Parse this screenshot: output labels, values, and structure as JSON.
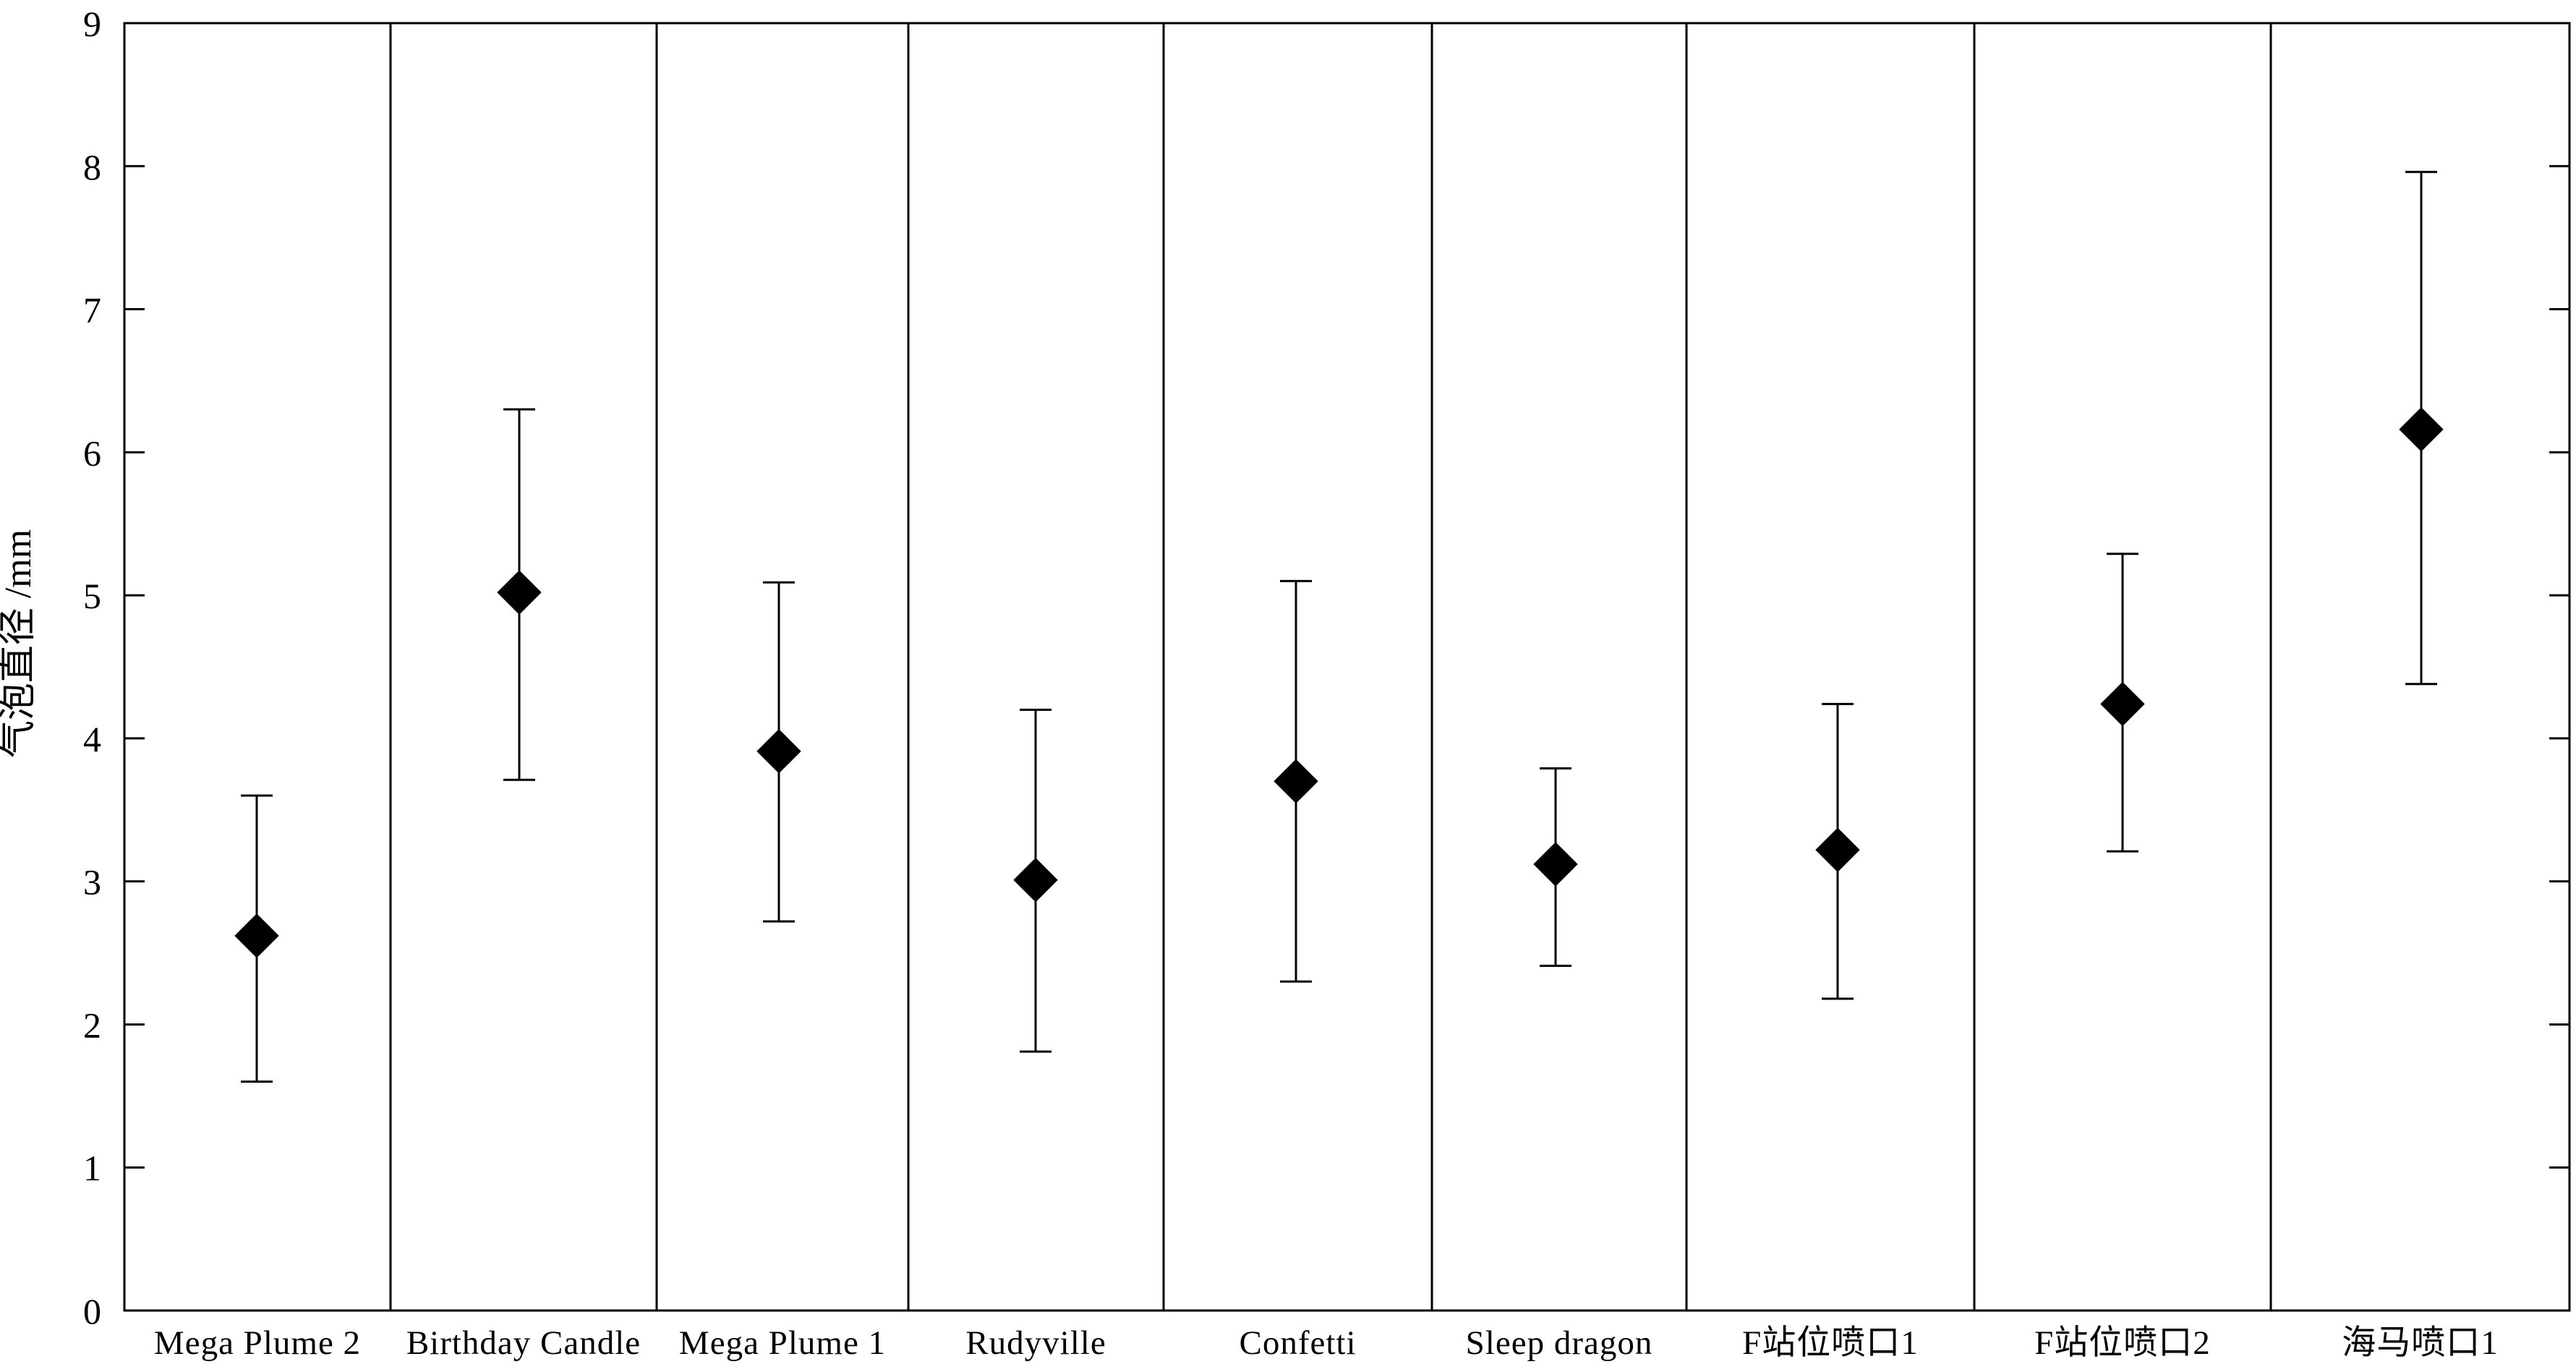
{
  "chart_data": {
    "type": "scatter",
    "title": "",
    "xlabel": "",
    "ylabel": "气泡直径 /mm",
    "ylim": [
      0,
      9
    ],
    "yticks": [
      0,
      1,
      2,
      3,
      4,
      5,
      6,
      7,
      8,
      9
    ],
    "grid": false,
    "legend": "none",
    "marker": "diamond",
    "marker_color": "#000000",
    "categories": [
      "Mega Plume 2",
      "Birthday Candle",
      "Mega Plume 1",
      "Rudyville",
      "Confetti",
      "Sleep dragon",
      "F站位喷口1",
      "F站位喷口2",
      "海马喷口1"
    ],
    "series": [
      {
        "values": [
          2.62,
          5.02,
          3.91,
          3.01,
          3.7,
          3.12,
          3.22,
          4.24,
          6.16
        ],
        "error_low": [
          1.6,
          3.71,
          2.72,
          1.81,
          2.3,
          2.41,
          2.18,
          3.21,
          4.38
        ],
        "error_high": [
          3.6,
          6.3,
          5.09,
          4.2,
          5.1,
          3.79,
          4.24,
          5.29,
          7.96
        ]
      }
    ]
  }
}
